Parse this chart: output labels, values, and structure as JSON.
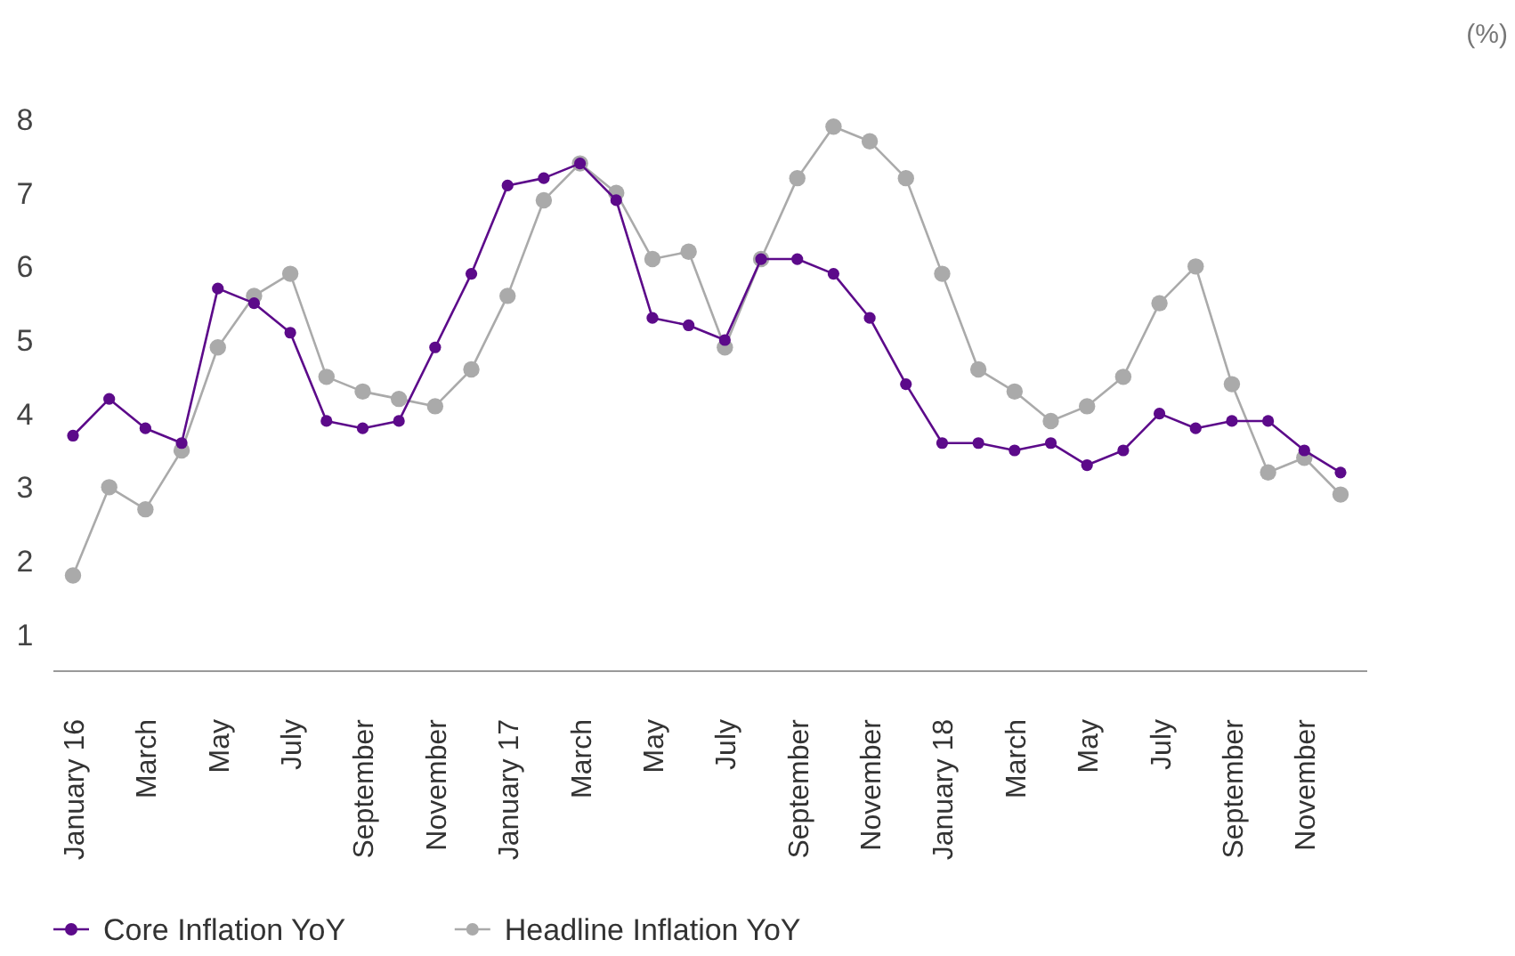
{
  "chart_data": {
    "type": "line",
    "annotations": [
      "(%)"
    ],
    "categories": [
      "January 16",
      null,
      "March",
      null,
      "May",
      null,
      "July",
      null,
      "September",
      null,
      "November",
      null,
      "January 17",
      null,
      "March",
      null,
      "May",
      null,
      "July",
      null,
      "September",
      null,
      "November",
      null,
      "January 18",
      null,
      "March",
      null,
      "May",
      null,
      "July",
      null,
      "September",
      null,
      "November",
      null
    ],
    "series": [
      {
        "name": "Core Inflation YoY",
        "color": "#5c0a8a",
        "values": [
          3.7,
          4.2,
          3.8,
          3.6,
          5.7,
          5.5,
          5.1,
          3.9,
          3.8,
          3.9,
          4.9,
          5.9,
          7.1,
          7.2,
          7.4,
          6.9,
          5.3,
          5.2,
          5.0,
          6.1,
          6.1,
          5.9,
          5.3,
          4.4,
          3.6,
          3.6,
          3.5,
          3.6,
          3.3,
          3.5,
          4.0,
          3.8,
          3.9,
          3.9,
          3.5,
          3.2
        ]
      },
      {
        "name": "Headline Inflation YoY",
        "color": "#aaaaaa",
        "values": [
          1.8,
          3.0,
          2.7,
          3.5,
          4.9,
          5.6,
          5.9,
          4.5,
          4.3,
          4.2,
          4.1,
          4.6,
          5.6,
          6.9,
          7.4,
          7.0,
          6.1,
          6.2,
          4.9,
          6.1,
          7.2,
          7.9,
          7.7,
          7.2,
          5.9,
          4.6,
          4.3,
          3.9,
          4.1,
          4.5,
          5.5,
          6.0,
          4.4,
          3.2,
          3.4,
          2.9
        ]
      }
    ],
    "ylim": [
      0.5,
      8
    ],
    "yticks": [
      1,
      2,
      3,
      4,
      5,
      6,
      7,
      8
    ],
    "grid": false,
    "legend": "bottom left",
    "marker": "circle",
    "line_style": "solid"
  }
}
